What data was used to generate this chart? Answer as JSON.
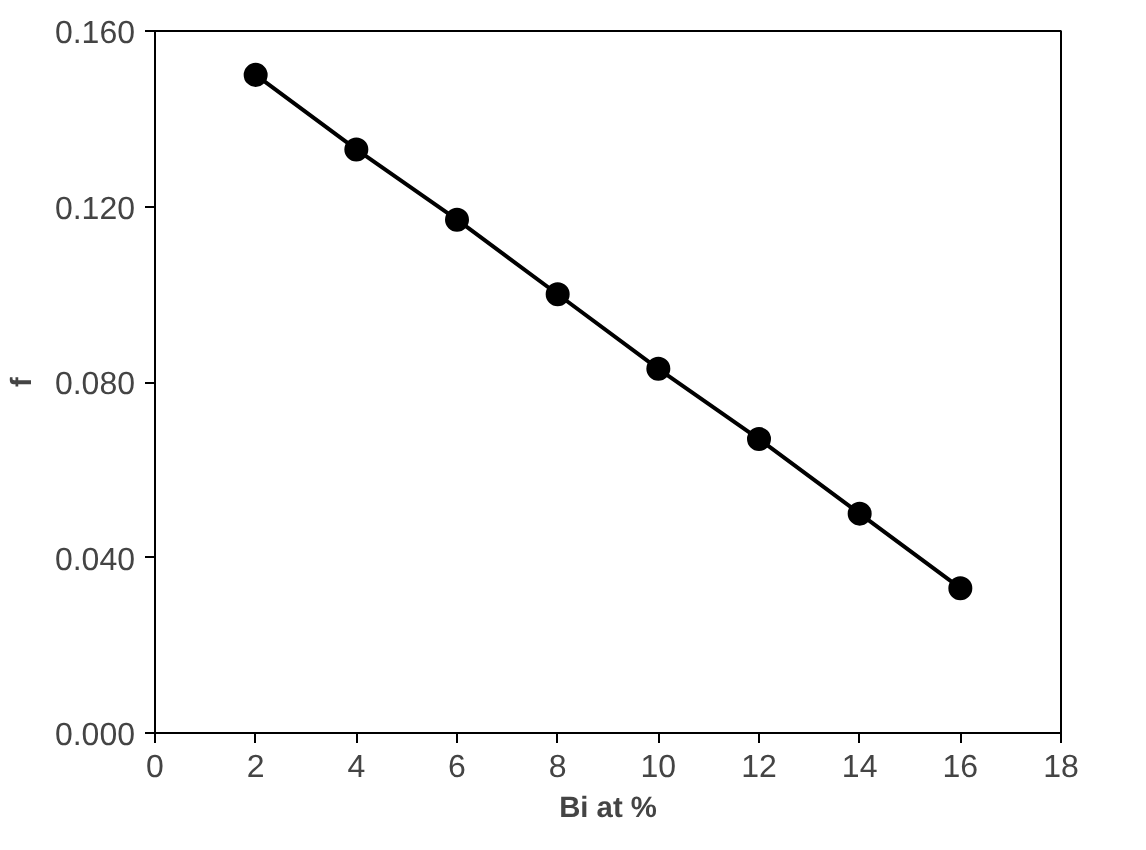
{
  "chart_data": {
    "type": "line",
    "xlabel": "Bi at %",
    "ylabel": "f",
    "x": [
      2,
      4,
      6,
      8,
      10,
      12,
      14,
      16
    ],
    "series": [
      {
        "color": "#000000",
        "values": [
          0.15,
          0.133,
          0.117,
          0.1,
          0.083,
          0.067,
          0.05,
          0.033
        ]
      }
    ],
    "xlim": [
      0,
      18
    ],
    "xticks": [
      0,
      2,
      4,
      6,
      8,
      10,
      12,
      14,
      16,
      18
    ],
    "ylim": [
      0,
      0.16
    ],
    "yticks": [
      {
        "value": 0,
        "label": "0.000"
      },
      {
        "value": 0.04,
        "label": "0.040"
      },
      {
        "value": 0.08,
        "label": "0.080"
      },
      {
        "value": 0.12,
        "label": "0.120"
      },
      {
        "value": 0.16,
        "label": "0.160"
      }
    ],
    "marker": "circle",
    "line_style": "solid",
    "grid": false
  }
}
